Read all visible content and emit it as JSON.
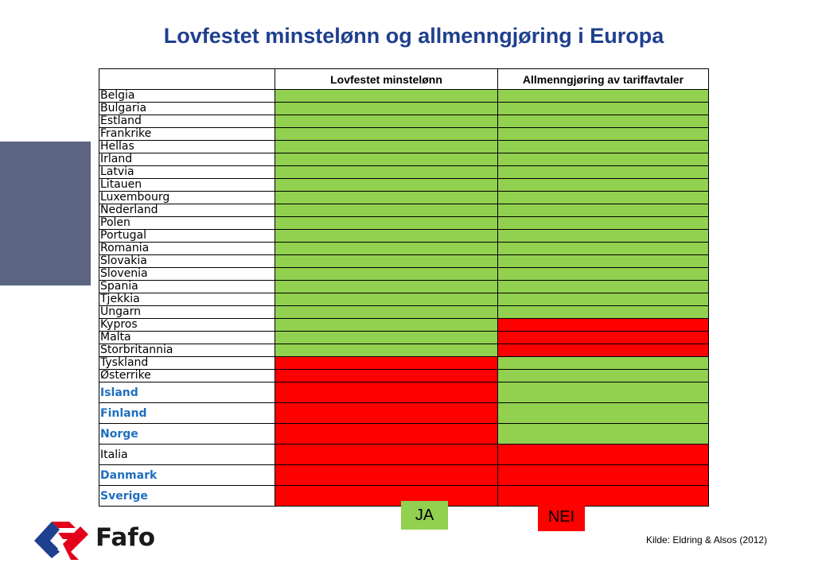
{
  "title": "Lovfestet minstelønn og allmenngjøring i Europa",
  "colors": {
    "yes": "#92d050",
    "no": "#ff0000",
    "title": "#1f3f8f",
    "highlight_text": "#1f6fbf",
    "sidebar": "#5b6480"
  },
  "table": {
    "header": {
      "country": "",
      "col1": "Lovfestet minstelønn",
      "col2": "Allmenngjøring av tariffavtaler"
    },
    "rows": [
      {
        "country": "Belgia",
        "minimum_wage": "yes",
        "extension": "yes",
        "highlight": false
      },
      {
        "country": "Bulgaria",
        "minimum_wage": "yes",
        "extension": "yes",
        "highlight": false
      },
      {
        "country": "Estland",
        "minimum_wage": "yes",
        "extension": "yes",
        "highlight": false
      },
      {
        "country": "Frankrike",
        "minimum_wage": "yes",
        "extension": "yes",
        "highlight": false
      },
      {
        "country": "Hellas",
        "minimum_wage": "yes",
        "extension": "yes",
        "highlight": false
      },
      {
        "country": "Irland",
        "minimum_wage": "yes",
        "extension": "yes",
        "highlight": false
      },
      {
        "country": "Latvia",
        "minimum_wage": "yes",
        "extension": "yes",
        "highlight": false
      },
      {
        "country": "Litauen",
        "minimum_wage": "yes",
        "extension": "yes",
        "highlight": false
      },
      {
        "country": "Luxembourg",
        "minimum_wage": "yes",
        "extension": "yes",
        "highlight": false
      },
      {
        "country": "Nederland",
        "minimum_wage": "yes",
        "extension": "yes",
        "highlight": false
      },
      {
        "country": "Polen",
        "minimum_wage": "yes",
        "extension": "yes",
        "highlight": false
      },
      {
        "country": "Portugal",
        "minimum_wage": "yes",
        "extension": "yes",
        "highlight": false
      },
      {
        "country": "Romania",
        "minimum_wage": "yes",
        "extension": "yes",
        "highlight": false
      },
      {
        "country": "Slovakia",
        "minimum_wage": "yes",
        "extension": "yes",
        "highlight": false
      },
      {
        "country": "Slovenia",
        "minimum_wage": "yes",
        "extension": "yes",
        "highlight": false
      },
      {
        "country": "Spania",
        "minimum_wage": "yes",
        "extension": "yes",
        "highlight": false
      },
      {
        "country": "Tjekkia",
        "minimum_wage": "yes",
        "extension": "yes",
        "highlight": false
      },
      {
        "country": "Ungarn",
        "minimum_wage": "yes",
        "extension": "yes",
        "highlight": false
      },
      {
        "country": "Kypros",
        "minimum_wage": "yes",
        "extension": "no",
        "highlight": false
      },
      {
        "country": "Malta",
        "minimum_wage": "yes",
        "extension": "no",
        "highlight": false
      },
      {
        "country": "Storbritannia",
        "minimum_wage": "yes",
        "extension": "no",
        "highlight": false
      },
      {
        "country": "Tyskland",
        "minimum_wage": "no",
        "extension": "yes",
        "highlight": false
      },
      {
        "country": "Østerrike",
        "minimum_wage": "no",
        "extension": "yes",
        "highlight": false
      },
      {
        "country": "Island",
        "minimum_wage": "no",
        "extension": "yes",
        "highlight": true
      },
      {
        "country": "Finland",
        "minimum_wage": "no",
        "extension": "yes",
        "highlight": true
      },
      {
        "country": "Norge",
        "minimum_wage": "no",
        "extension": "yes",
        "highlight": true
      },
      {
        "country": "Italia",
        "minimum_wage": "no",
        "extension": "no",
        "highlight": false
      },
      {
        "country": "Danmark",
        "minimum_wage": "no",
        "extension": "no",
        "highlight": true
      },
      {
        "country": "Sverige",
        "minimum_wage": "no",
        "extension": "no",
        "highlight": true
      }
    ]
  },
  "legend": {
    "yes_label": "JA",
    "no_label": "NEI"
  },
  "logo": {
    "text": "Fafo",
    "icon": "fafo-logo-icon"
  },
  "source": "Kilde: Eldring & Alsos (2012)"
}
